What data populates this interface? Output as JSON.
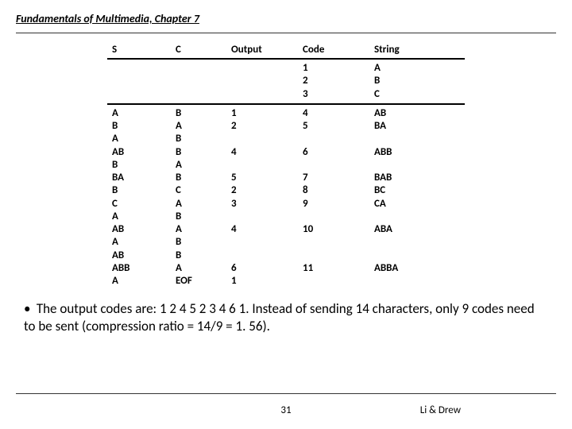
{
  "header": {
    "chapter": "Fundamentals of Multimedia, Chapter 7"
  },
  "table": {
    "headers": {
      "s": "S",
      "c": "C",
      "out": "Output",
      "code": "Code",
      "str": "String"
    },
    "init": [
      {
        "code": "1",
        "str": "A"
      },
      {
        "code": "2",
        "str": "B"
      },
      {
        "code": "3",
        "str": "C"
      }
    ],
    "rows": [
      {
        "s": "A",
        "c": "B",
        "out": "1",
        "code": "4",
        "str": "AB"
      },
      {
        "s": "B",
        "c": "A",
        "out": "2",
        "code": "5",
        "str": "BA"
      },
      {
        "s": "A",
        "c": "B",
        "out": "",
        "code": "",
        "str": ""
      },
      {
        "s": "AB",
        "c": "B",
        "out": "4",
        "code": "6",
        "str": "ABB"
      },
      {
        "s": "B",
        "c": "A",
        "out": "",
        "code": "",
        "str": ""
      },
      {
        "s": "BA",
        "c": "B",
        "out": "5",
        "code": "7",
        "str": "BAB"
      },
      {
        "s": "B",
        "c": "C",
        "out": "2",
        "code": "8",
        "str": "BC"
      },
      {
        "s": "C",
        "c": "A",
        "out": "3",
        "code": "9",
        "str": "CA"
      },
      {
        "s": "A",
        "c": "B",
        "out": "",
        "code": "",
        "str": ""
      },
      {
        "s": "AB",
        "c": "A",
        "out": "4",
        "code": "10",
        "str": "ABA"
      },
      {
        "s": "A",
        "c": "B",
        "out": "",
        "code": "",
        "str": ""
      },
      {
        "s": "AB",
        "c": "B",
        "out": "",
        "code": "",
        "str": ""
      },
      {
        "s": "ABB",
        "c": "A",
        "out": "6",
        "code": "11",
        "str": "ABBA"
      },
      {
        "s": "A",
        "c": "EOF",
        "out": "1",
        "code": "",
        "str": ""
      }
    ]
  },
  "note": {
    "text": "The output codes are: 1 2 4 5 2 3 4 6 1. Instead of sending 14 characters, only 9 codes need to be sent (compression ratio = 14/9 = 1. 56)."
  },
  "footer": {
    "page": "31",
    "authors": "Li & Drew"
  },
  "style": {
    "page_bg": "#ffffff",
    "text_color": "#000000",
    "rule_color": "#333333",
    "header_fontsize": 14,
    "table_fontsize": 13,
    "note_fontsize": 17,
    "footer_fontsize": 13,
    "col_widths": {
      "s": 80,
      "c": 70,
      "out": 90,
      "code": 90,
      "str": 120
    }
  }
}
